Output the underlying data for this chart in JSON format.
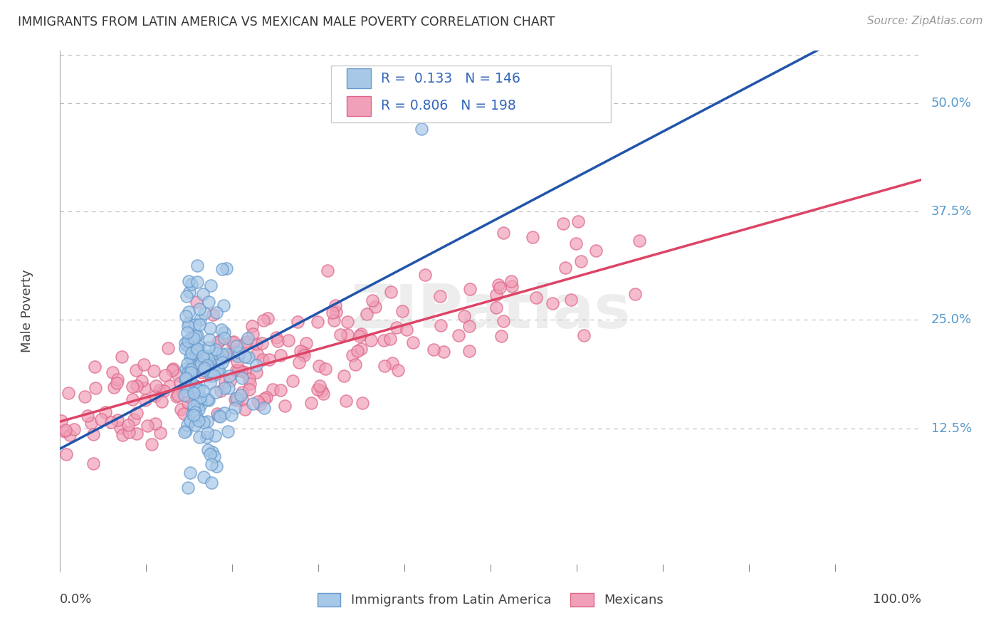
{
  "title": "IMMIGRANTS FROM LATIN AMERICA VS MEXICAN MALE POVERTY CORRELATION CHART",
  "source": "Source: ZipAtlas.com",
  "ylabel": "Male Poverty",
  "ytick_vals": [
    0.125,
    0.25,
    0.375,
    0.5
  ],
  "ytick_labels": [
    "12.5%",
    "25.0%",
    "37.5%",
    "50.0%"
  ],
  "xtick_vals": [
    0.0,
    0.1,
    0.2,
    0.3,
    0.4,
    0.5,
    0.6,
    0.7,
    0.8,
    0.9,
    1.0
  ],
  "hgrid_vals": [
    0.125,
    0.25,
    0.375,
    0.5
  ],
  "series1_facecolor": "#A8C8E8",
  "series1_edgecolor": "#6699CC",
  "series2_facecolor": "#F0A0B8",
  "series2_edgecolor": "#DD6688",
  "trend1_color": "#2255AA",
  "trend2_color": "#DD4466",
  "R1": 0.133,
  "N1": 146,
  "R2": 0.806,
  "N2": 198,
  "legend1": "Immigrants from Latin America",
  "legend2": "Mexicans",
  "watermark": "ZIPatlas",
  "background": "#FFFFFF",
  "grid_color": "#BBBBBB",
  "title_color": "#333333",
  "source_color": "#999999",
  "ylabel_color": "#444444",
  "tick_label_color": "#5599CC",
  "bottom_label_color": "#444444",
  "ylim_min": -0.04,
  "ylim_max": 0.56,
  "xlim_min": 0.0,
  "xlim_max": 1.0,
  "seed1": 12,
  "seed2": 77
}
